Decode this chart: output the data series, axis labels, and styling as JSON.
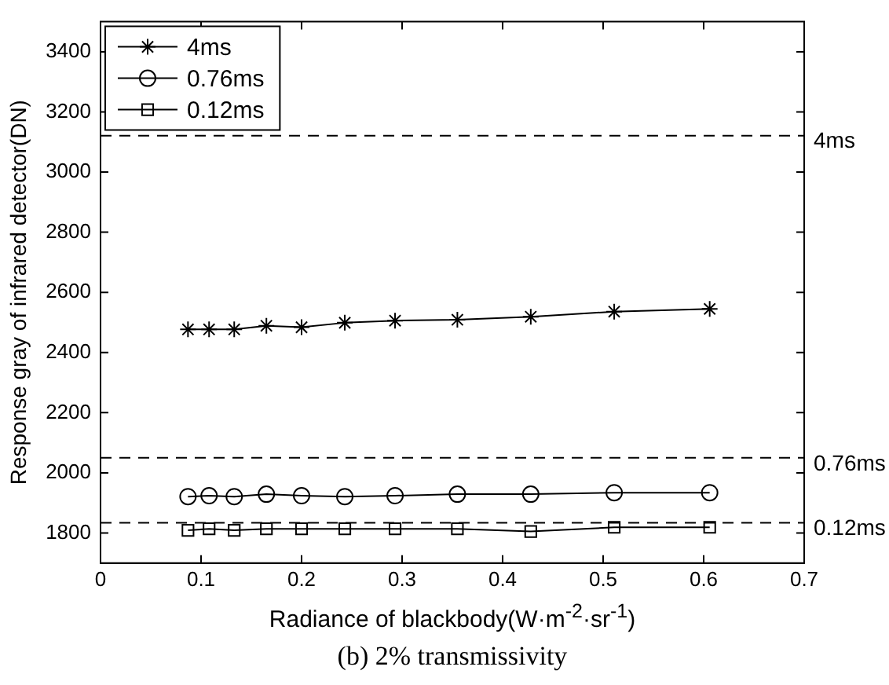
{
  "chart_data": {
    "type": "line",
    "title": "(b) 2% transmissivity",
    "xlabel": "Radiance of blackbody(W·m$^{-2}$·sr$^{-1}$)",
    "ylabel": "Response gray of infrared detector(DN)",
    "x": [
      0.087,
      0.108,
      0.133,
      0.165,
      0.2,
      0.243,
      0.293,
      0.355,
      0.428,
      0.511,
      0.606
    ],
    "series": [
      {
        "name": "4ms",
        "color": "#000000",
        "marker": "cross",
        "values": [
          2477,
          2477,
          2477,
          2489,
          2484,
          2499,
          2506,
          2509,
          2519,
          2536,
          2545
        ]
      },
      {
        "name": "0.76ms",
        "color": "#000000",
        "marker": "circle",
        "values": [
          1921,
          1924,
          1921,
          1929,
          1924,
          1921,
          1924,
          1929,
          1929,
          1934,
          1934
        ]
      },
      {
        "name": "0.12ms",
        "color": "#000000",
        "marker": "square",
        "values": [
          1809,
          1814,
          1809,
          1814,
          1814,
          1814,
          1814,
          1814,
          1805,
          1819,
          1819
        ]
      }
    ],
    "xlim": [
      0,
      0.7
    ],
    "xticks": [
      0,
      0.1,
      0.2,
      0.3,
      0.4,
      0.5,
      0.6,
      0.7
    ],
    "ylim": [
      1700,
      3500
    ],
    "yticks": [
      1800,
      2000,
      2200,
      2400,
      2600,
      2800,
      3000,
      3200,
      3400
    ],
    "ref_lines": [
      {
        "axis": "y",
        "value": 3121,
        "label": "4ms",
        "line_style": "dashed",
        "color": "#000000"
      },
      {
        "axis": "y",
        "value": 2050,
        "label": "0.76ms",
        "line_style": "dashed",
        "color": "#000000"
      },
      {
        "axis": "y",
        "value": 1834,
        "label": "0.12ms",
        "line_style": "dashed",
        "color": "#000000"
      }
    ],
    "legend": "top left",
    "grid": false,
    "line_style": "solid"
  }
}
